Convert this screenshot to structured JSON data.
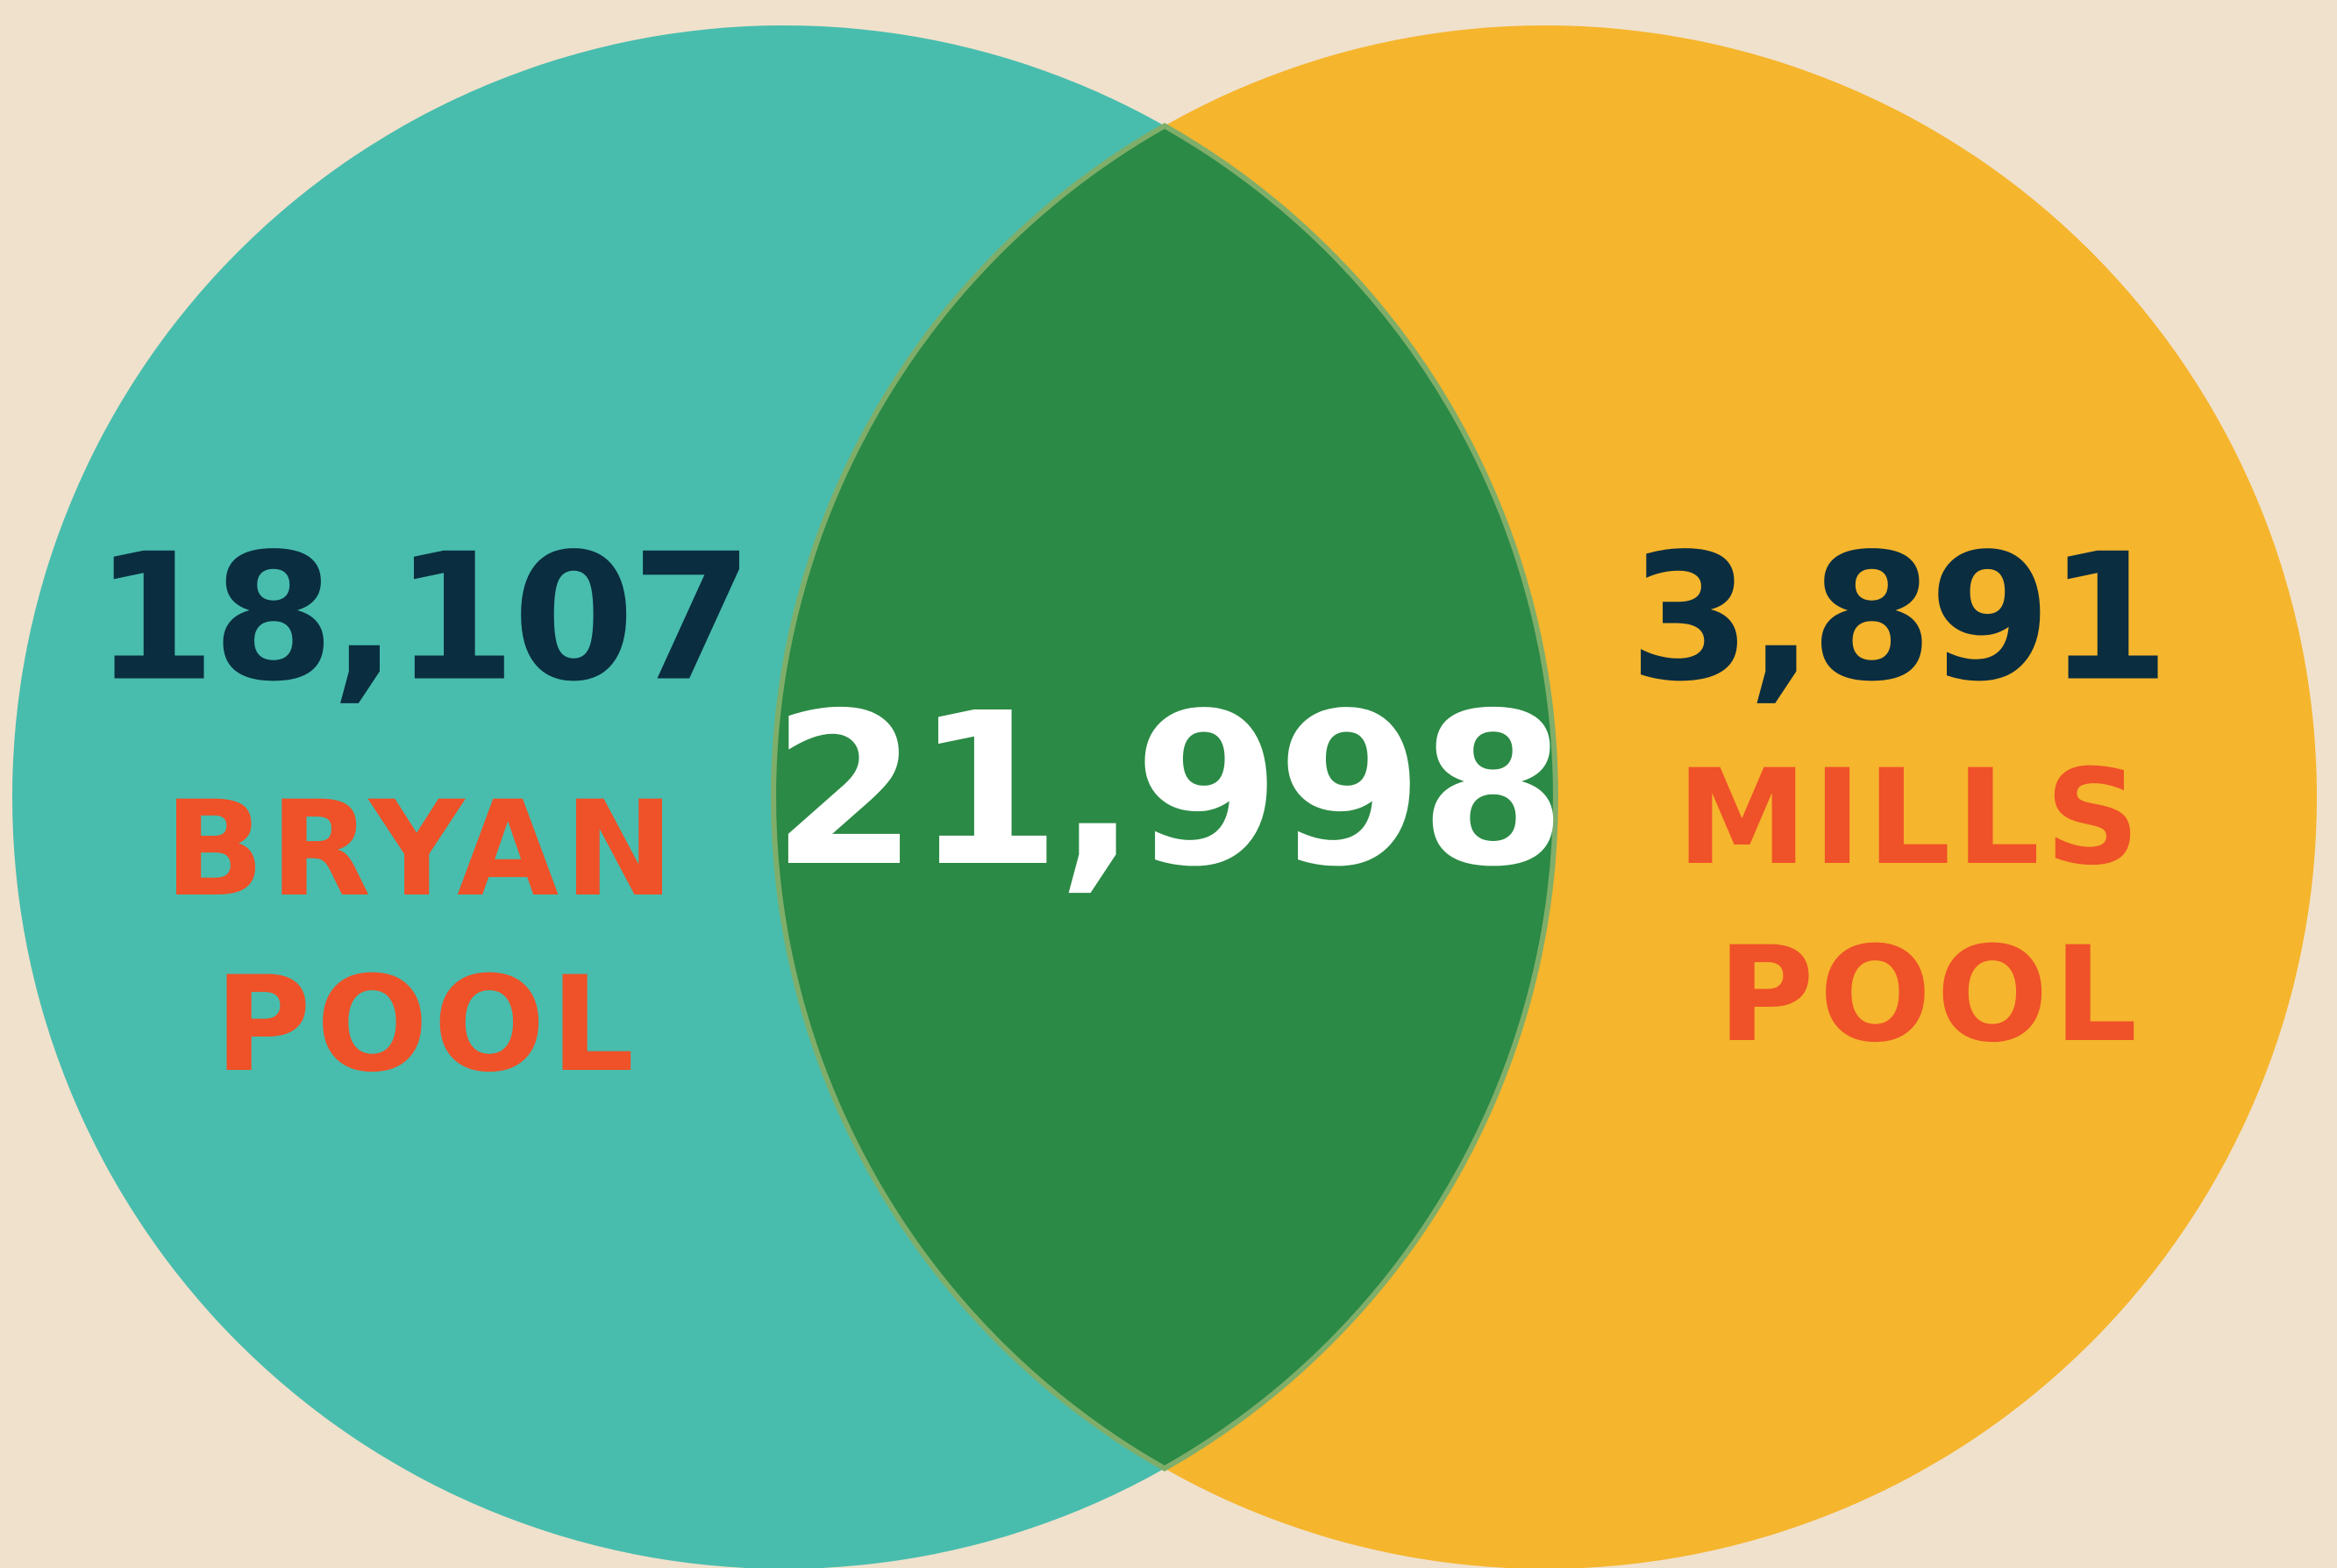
{
  "sets": [
    {
      "count": "18,107",
      "label": [
        "BRYAN",
        "POOL"
      ]
    },
    {
      "count": "3,891",
      "label": [
        "MILLS",
        "POOL"
      ]
    }
  ],
  "intersection": {
    "count": "21,998"
  }
}
